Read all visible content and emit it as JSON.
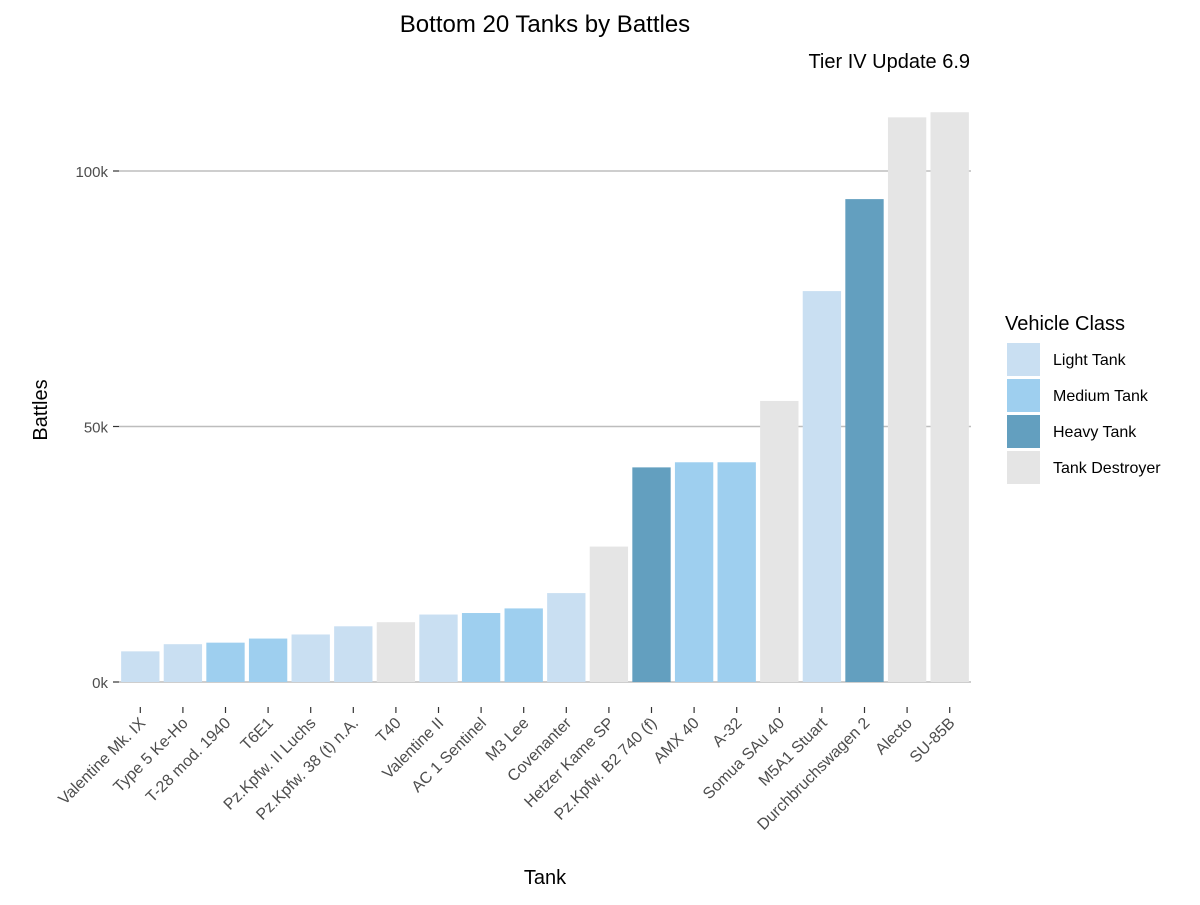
{
  "chart_data": {
    "type": "bar",
    "title": "Bottom 20 Tanks by Battles",
    "subtitle": "Tier IV Update 6.9",
    "xlabel": "Tank",
    "ylabel": "Battles",
    "ylim": [
      0,
      112000
    ],
    "y_ticks": [
      {
        "value": 0,
        "label": "0k"
      },
      {
        "value": 50000,
        "label": "50k"
      },
      {
        "value": 100000,
        "label": "100k"
      }
    ],
    "grid": "horizontal major",
    "legend": {
      "title": "Vehicle Class",
      "position": "right",
      "entries": [
        {
          "label": "Light Tank",
          "color": "#c9dff2"
        },
        {
          "label": "Medium Tank",
          "color": "#9ecfef"
        },
        {
          "label": "Heavy Tank",
          "color": "#639fbf"
        },
        {
          "label": "Tank Destroyer",
          "color": "#e5e5e5"
        }
      ]
    },
    "categories": [
      "Valentine Mk. IX",
      "Type 5 Ke-Ho",
      "T-28 mod. 1940",
      "T6E1",
      "Pz.Kpfw. II Luchs",
      "Pz.Kpfw. 38 (t) n.A.",
      "T40",
      "Valentine II",
      "AC 1 Sentinel",
      "M3 Lee",
      "Covenanter",
      "Hetzer Kame SP",
      "Pz.Kpfw. B2 740 (f)",
      "AMX 40",
      "A-32",
      "Somua SAu 40",
      "M5A1 Stuart",
      "Durchbruchswagen 2",
      "Alecto",
      "SU-85B"
    ],
    "values": [
      6000,
      7400,
      7700,
      8500,
      9300,
      10900,
      11700,
      13200,
      13500,
      14400,
      17400,
      26500,
      42000,
      43000,
      43000,
      55000,
      76500,
      94500,
      110500,
      111500
    ],
    "classes": [
      "Light Tank",
      "Light Tank",
      "Medium Tank",
      "Medium Tank",
      "Light Tank",
      "Light Tank",
      "Tank Destroyer",
      "Light Tank",
      "Medium Tank",
      "Medium Tank",
      "Light Tank",
      "Tank Destroyer",
      "Heavy Tank",
      "Medium Tank",
      "Medium Tank",
      "Tank Destroyer",
      "Light Tank",
      "Heavy Tank",
      "Tank Destroyer",
      "Tank Destroyer"
    ]
  }
}
